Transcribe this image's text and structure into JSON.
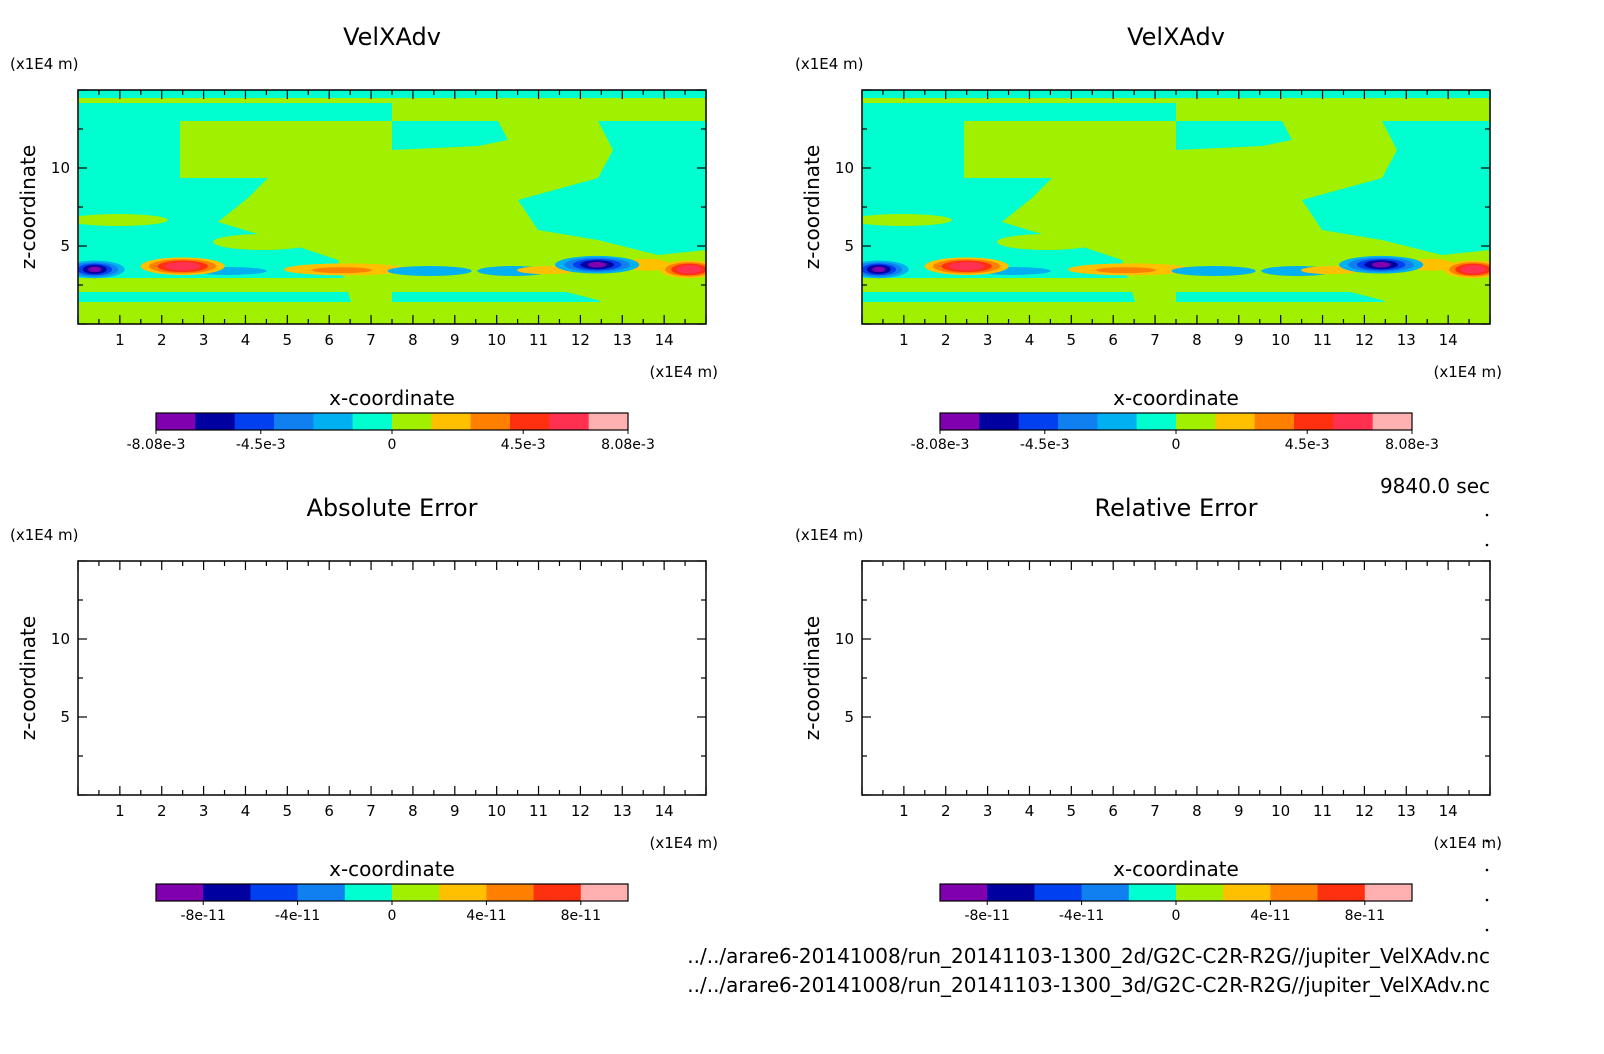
{
  "figure": {
    "time_label": "9840.0 sec",
    "files": [
      "../../arare6-20141008/run_20141103-1300_2d/G2C-C2R-R2G//jupiter_VelXAdv.nc",
      "../../arare6-20141008/run_20141103-1300_3d/G2C-C2R-R2G//jupiter_VelXAdv.nc"
    ]
  },
  "palette": [
    "#8000b0",
    "#0000a0",
    "#0040f0",
    "#1080f0",
    "#00b0f0",
    "#00ffd0",
    "#a0f000",
    "#ffc000",
    "#ff8000",
    "#ff3010",
    "#ff3050",
    "#ffb0b0"
  ],
  "chart_data": [
    {
      "type": "heatmap",
      "title": "VelXAdv",
      "xlabel": "x-coordinate",
      "ylabel": "z-coordinate",
      "x_unit": "(x1E4 m)",
      "z_unit": "(x1E4 m)",
      "xlim": [
        0,
        15
      ],
      "zlim": [
        0,
        15
      ],
      "x_ticks": [
        "1",
        "2",
        "3",
        "4",
        "5",
        "6",
        "7",
        "8",
        "9",
        "10",
        "11",
        "12",
        "13",
        "14"
      ],
      "z_ticks": [
        "5",
        "10"
      ],
      "colorbar": {
        "levels": [
          -0.00808,
          -0.0066,
          -0.0052,
          -0.0038,
          -0.0024,
          -0.001,
          0.001,
          0.0024,
          0.0038,
          0.0052,
          0.0066,
          0.00808
        ],
        "tick_labels": [
          "-8.08e-3",
          "-4.5e-3",
          "0",
          "4.5e-3",
          "8.08e-3"
        ],
        "tick_positions": [
          0,
          0.222,
          0.5,
          0.778,
          1
        ]
      },
      "features": [
        {
          "x": 0.4,
          "z": 3.5,
          "value": -0.0081
        },
        {
          "x": 2.5,
          "z": 3.7,
          "value": 0.007
        },
        {
          "x": 12.4,
          "z": 3.8,
          "value": -0.0075
        },
        {
          "x": 14.6,
          "z": 3.5,
          "value": 0.0066
        }
      ]
    },
    {
      "type": "heatmap",
      "title": "VelXAdv",
      "xlabel": "x-coordinate",
      "ylabel": "z-coordinate",
      "x_unit": "(x1E4 m)",
      "z_unit": "(x1E4 m)",
      "xlim": [
        0,
        15
      ],
      "zlim": [
        0,
        15
      ],
      "x_ticks": [
        "1",
        "2",
        "3",
        "4",
        "5",
        "6",
        "7",
        "8",
        "9",
        "10",
        "11",
        "12",
        "13",
        "14"
      ],
      "z_ticks": [
        "5",
        "10"
      ],
      "colorbar": {
        "levels": [
          -0.00808,
          -0.0066,
          -0.0052,
          -0.0038,
          -0.0024,
          -0.001,
          0.001,
          0.0024,
          0.0038,
          0.0052,
          0.0066,
          0.00808
        ],
        "tick_labels": [
          "-8.08e-3",
          "-4.5e-3",
          "0",
          "4.5e-3",
          "8.08e-3"
        ],
        "tick_positions": [
          0,
          0.222,
          0.5,
          0.778,
          1
        ]
      },
      "features": [
        {
          "x": 0.4,
          "z": 3.5,
          "value": -0.0081
        },
        {
          "x": 2.5,
          "z": 3.7,
          "value": 0.007
        },
        {
          "x": 12.4,
          "z": 3.8,
          "value": -0.0075
        },
        {
          "x": 14.6,
          "z": 3.5,
          "value": 0.0066
        }
      ]
    },
    {
      "type": "heatmap",
      "title": "Absolute Error",
      "xlabel": "x-coordinate",
      "ylabel": "z-coordinate",
      "x_unit": "(x1E4 m)",
      "z_unit": "(x1E4 m)",
      "xlim": [
        0,
        15
      ],
      "zlim": [
        0,
        15
      ],
      "x_ticks": [
        "1",
        "2",
        "3",
        "4",
        "5",
        "6",
        "7",
        "8",
        "9",
        "10",
        "11",
        "12",
        "13",
        "14"
      ],
      "z_ticks": [
        "5",
        "10"
      ],
      "colorbar": {
        "levels": [
          -1e-10,
          -8e-11,
          -6e-11,
          -4e-11,
          -2e-11,
          0,
          2e-11,
          4e-11,
          6e-11,
          8e-11,
          1e-10
        ],
        "tick_labels": [
          "-8e-11",
          "-4e-11",
          "0",
          "4e-11",
          "8e-11"
        ],
        "tick_positions": [
          0.1,
          0.3,
          0.5,
          0.7,
          0.9
        ]
      },
      "features": []
    },
    {
      "type": "heatmap",
      "title": "Relative Error",
      "xlabel": "x-coordinate",
      "ylabel": "z-coordinate",
      "x_unit": "(x1E4 m)",
      "z_unit": "(x1E4 m)",
      "xlim": [
        0,
        15
      ],
      "zlim": [
        0,
        15
      ],
      "x_ticks": [
        "1",
        "2",
        "3",
        "4",
        "5",
        "6",
        "7",
        "8",
        "9",
        "10",
        "11",
        "12",
        "13",
        "14"
      ],
      "z_ticks": [
        "5",
        "10"
      ],
      "colorbar": {
        "levels": [
          -1e-10,
          -8e-11,
          -6e-11,
          -4e-11,
          -2e-11,
          0,
          2e-11,
          4e-11,
          6e-11,
          8e-11,
          1e-10
        ],
        "tick_labels": [
          "-8e-11",
          "-4e-11",
          "0",
          "4e-11",
          "8e-11"
        ],
        "tick_positions": [
          0.1,
          0.3,
          0.5,
          0.7,
          0.9
        ]
      },
      "features": []
    }
  ]
}
